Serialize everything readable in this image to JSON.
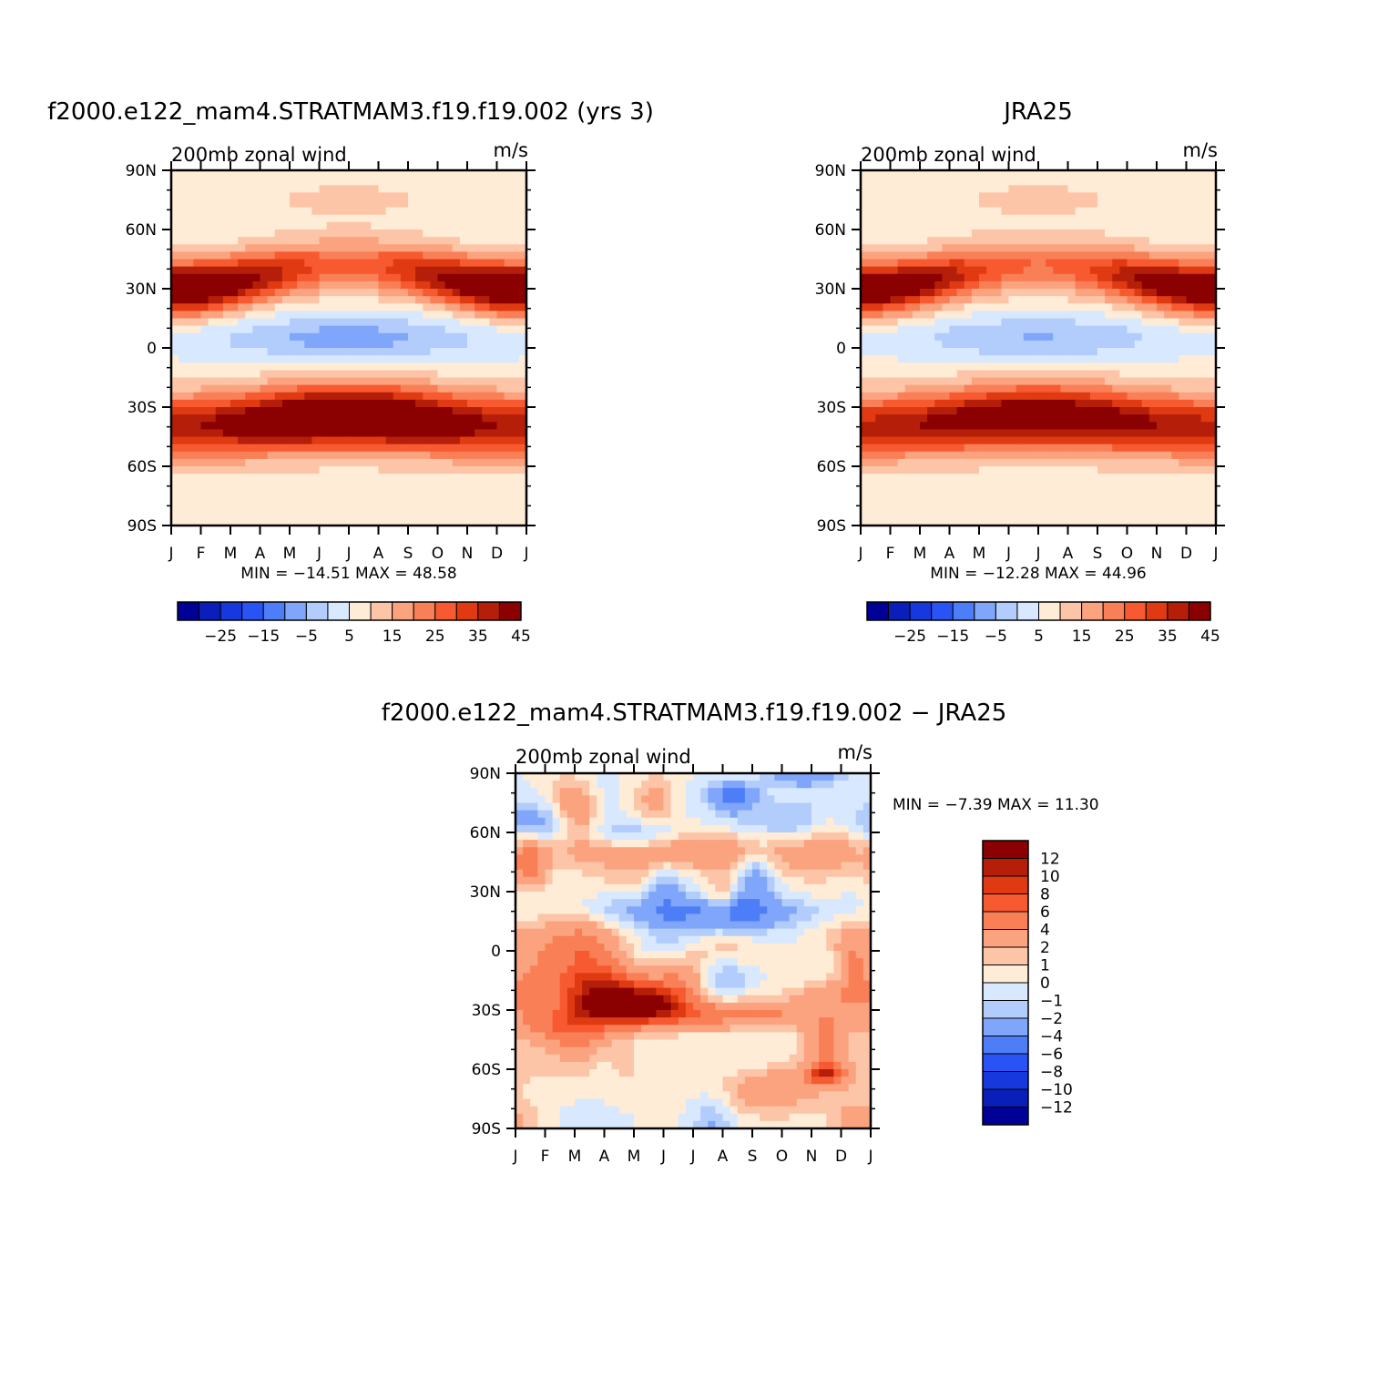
{
  "colors": {
    "main_scale": [
      "#000096",
      "#0a1fb9",
      "#1638dd",
      "#2953f5",
      "#4d7ef7",
      "#7fa6fa",
      "#b2cdfb",
      "#d8e8fe",
      "#ffecd6",
      "#fdc5a7",
      "#fba27e",
      "#f97f56",
      "#f75a30",
      "#df3a12",
      "#b51f09",
      "#8b0000"
    ],
    "diff_scale": [
      "#000096",
      "#0a1fb9",
      "#1638dd",
      "#2953f5",
      "#4d7ef7",
      "#7fa6fa",
      "#b2cdfb",
      "#d8e8fe",
      "#ffecd6",
      "#fdc5a7",
      "#fba27e",
      "#f97f56",
      "#f75a30",
      "#df3a12",
      "#b51f09",
      "#8b0000"
    ]
  },
  "chart_data": [
    {
      "type": "heatmap",
      "name": "model",
      "title": "f2000.e122_mam4.STRATMAM3.f19.f19.002 (yrs 3)",
      "left_label": "200mb zonal wind",
      "right_label": "m/s",
      "x_ticks": [
        "J",
        "F",
        "M",
        "A",
        "M",
        "J",
        "J",
        "A",
        "S",
        "O",
        "N",
        "D",
        "J"
      ],
      "y_ticks": [
        "90N",
        "60N",
        "30N",
        "0",
        "30S",
        "60S",
        "90S"
      ],
      "ylim": [
        -90,
        90
      ],
      "stats": "MIN = −14.51 MAX =  48.58",
      "colorbar_labels": [
        "−25",
        "−15",
        "−5",
        "5",
        "15",
        "25",
        "35",
        "45"
      ],
      "levels": [
        -35,
        -30,
        -25,
        -20,
        -15,
        -10,
        -5,
        0,
        5,
        10,
        15,
        20,
        25,
        30,
        35,
        40,
        45
      ],
      "min": -14.51,
      "max": 48.58,
      "nh_jet_core": {
        "lat": 30,
        "max_winter": 48,
        "min_summer": 20
      },
      "sh_jet_core": {
        "lat": -35,
        "max_winter": 48,
        "min_summer": 32
      },
      "tropical_min": {
        "lat": 5,
        "month": "Jul",
        "value": -14.51
      }
    },
    {
      "type": "heatmap",
      "name": "obs",
      "title": "JRA25",
      "left_label": "200mb zonal wind",
      "right_label": "m/s",
      "x_ticks": [
        "J",
        "F",
        "M",
        "A",
        "M",
        "J",
        "J",
        "A",
        "S",
        "O",
        "N",
        "D",
        "J"
      ],
      "y_ticks": [
        "90N",
        "60N",
        "30N",
        "0",
        "30S",
        "60S",
        "90S"
      ],
      "ylim": [
        -90,
        90
      ],
      "stats": "MIN = −12.28 MAX =  44.96",
      "colorbar_labels": [
        "−25",
        "−15",
        "−5",
        "5",
        "15",
        "25",
        "35",
        "45"
      ],
      "levels": [
        -35,
        -30,
        -25,
        -20,
        -15,
        -10,
        -5,
        0,
        5,
        10,
        15,
        20,
        25,
        30,
        35,
        40,
        45
      ],
      "min": -12.28,
      "max": 44.96,
      "nh_jet_core": {
        "lat": 30,
        "max_winter": 44,
        "min_summer": 18
      },
      "sh_jet_core": {
        "lat": -35,
        "max_winter": 42,
        "min_summer": 30
      },
      "tropical_min": {
        "lat": 5,
        "month": "Jul",
        "value": -12.28
      }
    },
    {
      "type": "heatmap",
      "name": "difference",
      "title": "f2000.e122_mam4.STRATMAM3.f19.f19.002 − JRA25",
      "left_label": "200mb zonal wind",
      "right_label": "m/s",
      "x_ticks": [
        "J",
        "F",
        "M",
        "A",
        "M",
        "J",
        "J",
        "A",
        "S",
        "O",
        "N",
        "D",
        "J"
      ],
      "y_ticks": [
        "90N",
        "60N",
        "30N",
        "0",
        "30S",
        "60S",
        "90S"
      ],
      "ylim": [
        -90,
        90
      ],
      "stats": "MIN =   −7.39  MAX =    11.30",
      "colorbar_labels": [
        "12",
        "10",
        "8",
        "6",
        "4",
        "2",
        "1",
        "0",
        "−1",
        "−2",
        "−4",
        "−6",
        "−8",
        "−10",
        "−12"
      ],
      "levels": [
        -12,
        -10,
        -8,
        -6,
        -4,
        -2,
        -1,
        0,
        1,
        2,
        4,
        6,
        8,
        10,
        12
      ],
      "min": -7.39,
      "max": 11.3
    }
  ]
}
